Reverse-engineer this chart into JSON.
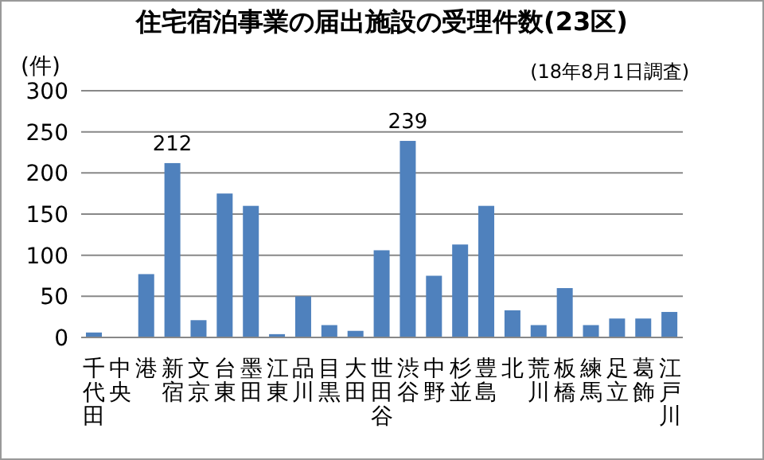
{
  "chart_data": {
    "type": "bar",
    "title": "住宅宿泊事業の届出施設の受理件数(23区)",
    "ylabel": "(件)",
    "annotations": [
      "(18年8月1日調査)"
    ],
    "categories": [
      "千代田",
      "中央",
      "港",
      "新宿",
      "文京",
      "台東",
      "墨田",
      "江東",
      "品川",
      "目黒",
      "大田",
      "世田谷",
      "渋谷",
      "中野",
      "杉並",
      "豊島",
      "北",
      "荒川",
      "板橋",
      "練馬",
      "足立",
      "葛飾",
      "江戸川"
    ],
    "values": [
      6,
      0,
      77,
      212,
      21,
      175,
      160,
      4,
      50,
      15,
      8,
      106,
      239,
      75,
      113,
      160,
      33,
      15,
      60,
      15,
      23,
      23,
      31
    ],
    "value_labels": [
      null,
      null,
      null,
      "212",
      null,
      null,
      null,
      null,
      null,
      null,
      null,
      null,
      "239",
      null,
      null,
      null,
      null,
      null,
      null,
      null,
      null,
      null,
      null
    ],
    "color": "#4f81bd",
    "ylim": [
      0,
      300
    ],
    "yticks": [
      0,
      50,
      100,
      150,
      200,
      250,
      300
    ],
    "grid": "y",
    "legend": false
  }
}
